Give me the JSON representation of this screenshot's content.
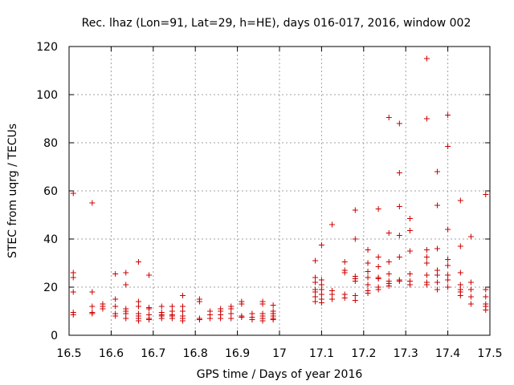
{
  "chart_data": {
    "type": "scatter",
    "title": "Rec. lhaz (Lon=91, Lat=29, h=HE), days 016-017, 2016, window 002",
    "xlabel": "GPS time / Days of year 2016",
    "ylabel": "STEC from uqrg / TECUs",
    "xlim": [
      16.5,
      17.5
    ],
    "ylim": [
      0,
      120
    ],
    "xticks": [
      "16.5",
      "16.6",
      "16.7",
      "16.8",
      "16.9",
      "17",
      "17.1",
      "17.2",
      "17.3",
      "17.4",
      "17.5"
    ],
    "yticks": [
      "0",
      "20",
      "40",
      "60",
      "80",
      "100",
      "120"
    ],
    "grid": true,
    "marker": "+",
    "color": "#cc0000",
    "points": [
      [
        16.51,
        59
      ],
      [
        16.51,
        26
      ],
      [
        16.51,
        24
      ],
      [
        16.51,
        18
      ],
      [
        16.51,
        9.5
      ],
      [
        16.51,
        8.5
      ],
      [
        16.555,
        55
      ],
      [
        16.555,
        18
      ],
      [
        16.555,
        12
      ],
      [
        16.555,
        9.5
      ],
      [
        16.555,
        9
      ],
      [
        16.58,
        13
      ],
      [
        16.58,
        12
      ],
      [
        16.58,
        11
      ],
      [
        16.61,
        25.5
      ],
      [
        16.61,
        15
      ],
      [
        16.61,
        12
      ],
      [
        16.61,
        9
      ],
      [
        16.61,
        8
      ],
      [
        16.635,
        26
      ],
      [
        16.635,
        21
      ],
      [
        16.635,
        11
      ],
      [
        16.635,
        10
      ],
      [
        16.635,
        9
      ],
      [
        16.635,
        7
      ],
      [
        16.665,
        30.5
      ],
      [
        16.665,
        14
      ],
      [
        16.665,
        12
      ],
      [
        16.665,
        9
      ],
      [
        16.665,
        8
      ],
      [
        16.665,
        7
      ],
      [
        16.665,
        6
      ],
      [
        16.69,
        25
      ],
      [
        16.69,
        11.5
      ],
      [
        16.69,
        11
      ],
      [
        16.69,
        8.5
      ],
      [
        16.69,
        7
      ],
      [
        16.69,
        6.5
      ],
      [
        16.72,
        12
      ],
      [
        16.72,
        9.5
      ],
      [
        16.72,
        8.5
      ],
      [
        16.72,
        8
      ],
      [
        16.72,
        7
      ],
      [
        16.745,
        12
      ],
      [
        16.745,
        10
      ],
      [
        16.745,
        8.5
      ],
      [
        16.745,
        8
      ],
      [
        16.745,
        7
      ],
      [
        16.77,
        16.5
      ],
      [
        16.77,
        12
      ],
      [
        16.77,
        10
      ],
      [
        16.77,
        8
      ],
      [
        16.77,
        7
      ],
      [
        16.77,
        6
      ],
      [
        16.81,
        15
      ],
      [
        16.81,
        14
      ],
      [
        16.81,
        7
      ],
      [
        16.81,
        6.5
      ],
      [
        16.835,
        10
      ],
      [
        16.835,
        8.5
      ],
      [
        16.835,
        7
      ],
      [
        16.86,
        11
      ],
      [
        16.86,
        10
      ],
      [
        16.86,
        8.5
      ],
      [
        16.86,
        7
      ],
      [
        16.885,
        12
      ],
      [
        16.885,
        11
      ],
      [
        16.885,
        9
      ],
      [
        16.885,
        7
      ],
      [
        16.91,
        14
      ],
      [
        16.91,
        13
      ],
      [
        16.91,
        8
      ],
      [
        16.91,
        7.5
      ],
      [
        16.935,
        9
      ],
      [
        16.935,
        7.5
      ],
      [
        16.935,
        6.5
      ],
      [
        16.96,
        14
      ],
      [
        16.96,
        13
      ],
      [
        16.96,
        9
      ],
      [
        16.96,
        8
      ],
      [
        16.96,
        7
      ],
      [
        16.96,
        6
      ],
      [
        16.985,
        12.5
      ],
      [
        16.985,
        10
      ],
      [
        16.985,
        9
      ],
      [
        16.985,
        8
      ],
      [
        16.985,
        7
      ],
      [
        16.985,
        6.5
      ],
      [
        17.085,
        31
      ],
      [
        17.085,
        24
      ],
      [
        17.085,
        22
      ],
      [
        17.085,
        19
      ],
      [
        17.085,
        18
      ],
      [
        17.085,
        16
      ],
      [
        17.085,
        14
      ],
      [
        17.1,
        37.5
      ],
      [
        17.1,
        23
      ],
      [
        17.1,
        21
      ],
      [
        17.1,
        19
      ],
      [
        17.1,
        17
      ],
      [
        17.1,
        15
      ],
      [
        17.1,
        13.5
      ],
      [
        17.125,
        46
      ],
      [
        17.125,
        18.5
      ],
      [
        17.125,
        17
      ],
      [
        17.125,
        15
      ],
      [
        17.155,
        30.5
      ],
      [
        17.155,
        27
      ],
      [
        17.155,
        26
      ],
      [
        17.155,
        17
      ],
      [
        17.155,
        15.5
      ],
      [
        17.18,
        52
      ],
      [
        17.18,
        40
      ],
      [
        17.18,
        24.5
      ],
      [
        17.18,
        23.5
      ],
      [
        17.18,
        22.5
      ],
      [
        17.18,
        16.5
      ],
      [
        17.18,
        14.5
      ],
      [
        17.21,
        35.5
      ],
      [
        17.21,
        30
      ],
      [
        17.21,
        26.5
      ],
      [
        17.21,
        24
      ],
      [
        17.21,
        21
      ],
      [
        17.21,
        18.5
      ],
      [
        17.21,
        17.5
      ],
      [
        17.235,
        52.5
      ],
      [
        17.235,
        32.5
      ],
      [
        17.235,
        28.5
      ],
      [
        17.235,
        24
      ],
      [
        17.235,
        23.5
      ],
      [
        17.235,
        20
      ],
      [
        17.235,
        19
      ],
      [
        17.26,
        90.5
      ],
      [
        17.26,
        42.5
      ],
      [
        17.26,
        30.5
      ],
      [
        17.26,
        25.5
      ],
      [
        17.26,
        22.5
      ],
      [
        17.26,
        21.5
      ],
      [
        17.26,
        20.5
      ],
      [
        17.285,
        88
      ],
      [
        17.285,
        67.5
      ],
      [
        17.285,
        53.5
      ],
      [
        17.285,
        41.5
      ],
      [
        17.285,
        32.5
      ],
      [
        17.285,
        23
      ],
      [
        17.285,
        22.5
      ],
      [
        17.31,
        48.5
      ],
      [
        17.31,
        43.5
      ],
      [
        17.31,
        35
      ],
      [
        17.31,
        25.5
      ],
      [
        17.31,
        22.5
      ],
      [
        17.31,
        21
      ],
      [
        17.35,
        115
      ],
      [
        17.35,
        90
      ],
      [
        17.35,
        35.5
      ],
      [
        17.35,
        32.5
      ],
      [
        17.35,
        30
      ],
      [
        17.35,
        25
      ],
      [
        17.35,
        22
      ],
      [
        17.35,
        21
      ],
      [
        17.375,
        68
      ],
      [
        17.375,
        54
      ],
      [
        17.375,
        36
      ],
      [
        17.375,
        27
      ],
      [
        17.375,
        25
      ],
      [
        17.375,
        22
      ],
      [
        17.375,
        19
      ],
      [
        17.4,
        91.5
      ],
      [
        17.4,
        78.5
      ],
      [
        17.4,
        44
      ],
      [
        17.4,
        31.5
      ],
      [
        17.4,
        29
      ],
      [
        17.4,
        25
      ],
      [
        17.4,
        23
      ],
      [
        17.4,
        20
      ],
      [
        17.43,
        56
      ],
      [
        17.43,
        37
      ],
      [
        17.43,
        26
      ],
      [
        17.43,
        21
      ],
      [
        17.43,
        19
      ],
      [
        17.43,
        18
      ],
      [
        17.43,
        16.5
      ],
      [
        17.455,
        41
      ],
      [
        17.455,
        22
      ],
      [
        17.455,
        19
      ],
      [
        17.455,
        16
      ],
      [
        17.455,
        13
      ],
      [
        17.49,
        58.5
      ],
      [
        17.49,
        19
      ],
      [
        17.49,
        16
      ],
      [
        17.49,
        13
      ],
      [
        17.49,
        12
      ],
      [
        17.49,
        10.5
      ]
    ]
  }
}
